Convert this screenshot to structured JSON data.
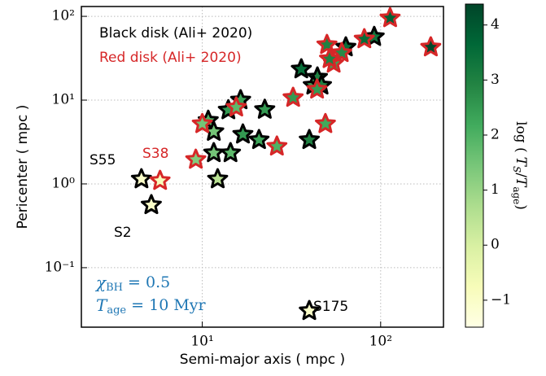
{
  "chart_data": {
    "type": "scatter",
    "xlabel": "Semi-major axis ( mpc )",
    "ylabel": "Pericenter ( mpc )",
    "xscale": "log",
    "yscale": "log",
    "grid": true,
    "xlim": [
      2.1,
      225
    ],
    "ylim": [
      0.0195,
      131
    ],
    "xticks": [
      {
        "value": 10,
        "label": "10¹"
      },
      {
        "value": 100,
        "label": "10²"
      }
    ],
    "yticks": [
      {
        "value": 0.1,
        "label": "10⁻¹"
      },
      {
        "value": 1,
        "label": "10⁰"
      },
      {
        "value": 10,
        "label": "10¹"
      },
      {
        "value": 100,
        "label": "10²"
      }
    ],
    "colormap": [
      "#ffffe5",
      "#f7fcb9",
      "#d9f0a3",
      "#addd8e",
      "#78c679",
      "#41ab5d",
      "#238443",
      "#006837",
      "#004529"
    ],
    "clim": [
      -1.49,
      4.38
    ],
    "cticks": [
      {
        "value": -1,
        "label": "−1"
      },
      0,
      1,
      2,
      3,
      4
    ],
    "clabel": {
      "pre": "log (",
      "t1": "T",
      "s1": "S",
      "mid": "/",
      "t2": "T",
      "s2": "age",
      "post": ")"
    },
    "legend": "upper left",
    "series": [
      {
        "name": "Black disk (Ali+ 2020)",
        "color": "#000000",
        "x": [
          4.56,
          5.18,
          39.8,
          12.2,
          11.6,
          14.4,
          10.8,
          11.6,
          16.9,
          20.8,
          14.0,
          16.4,
          22.4,
          39.8,
          35.9,
          44.2,
          41.9,
          46.6,
          63.8,
          92
        ],
        "y": [
          1.14,
          0.56,
          0.0305,
          1.14,
          2.34,
          2.34,
          5.7,
          4.2,
          3.9,
          3.35,
          7.6,
          10,
          7.7,
          3.35,
          23.4,
          18.7,
          15,
          15,
          42.8,
          57
        ],
        "c": [
          -1,
          -1,
          -1,
          0.5,
          1.5,
          1.8,
          2,
          1.5,
          2.5,
          2.3,
          2.5,
          2.3,
          2.5,
          3,
          3.5,
          3,
          2.5,
          3,
          3.5,
          3.3
        ]
      },
      {
        "name": "Red disk (Ali+ 2020)",
        "color": "#d62728",
        "x": [
          5.8,
          9.2,
          10,
          15.5,
          26.2,
          32.3,
          49,
          44,
          50,
          54.5,
          60.5,
          81,
          113,
          191,
          51.7
        ],
        "y": [
          1.09,
          1.95,
          5.2,
          8.2,
          2.8,
          10.7,
          5.2,
          13.4,
          45.7,
          27.4,
          36.6,
          53.5,
          95.5,
          42.8,
          31
        ],
        "c": [
          -0.8,
          1.3,
          1.5,
          1.8,
          2,
          2.5,
          2.2,
          2.5,
          3,
          2.3,
          2.8,
          3.5,
          3.8,
          4.3,
          3
        ]
      }
    ],
    "annotations": [
      {
        "text": "S55",
        "color": "#000000"
      },
      {
        "text": "S38",
        "color": "#d62728"
      },
      {
        "text": "S2",
        "color": "#000000"
      },
      {
        "text": "S175",
        "color": "#000000"
      }
    ],
    "params": [
      {
        "symbol": "χ",
        "sub": "BH",
        "rest": " = 0.5",
        "color": "#1f77b4"
      },
      {
        "symbol": "T",
        "sub": "age",
        "rest": " = 10 Myr",
        "color": "#1f77b4"
      }
    ]
  }
}
